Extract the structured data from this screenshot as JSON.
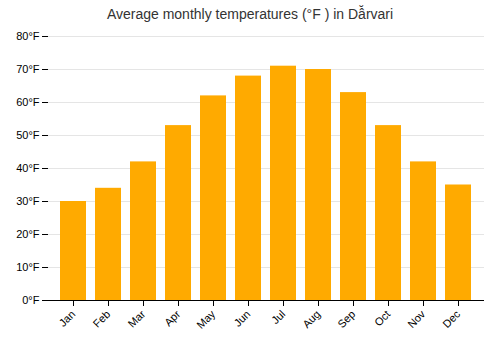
{
  "chart_data": {
    "type": "bar",
    "title": "Average monthly temperatures (°F ) in Dâ̆rvari",
    "categories": [
      "Jan",
      "Feb",
      "Mar",
      "Apr",
      "May",
      "Jun",
      "Jul",
      "Aug",
      "Sep",
      "Oct",
      "Nov",
      "Dec"
    ],
    "values": [
      30,
      34,
      42,
      53,
      62,
      68,
      71,
      70,
      63,
      53,
      42,
      35
    ],
    "color": "#FFAA00",
    "ylim": [
      0,
      80
    ],
    "yticks": [
      {
        "value": 0,
        "label": "0°F"
      },
      {
        "value": 10,
        "label": "10°F"
      },
      {
        "value": 20,
        "label": "20°F"
      },
      {
        "value": 30,
        "label": "30°F"
      },
      {
        "value": 40,
        "label": "40°F"
      },
      {
        "value": 50,
        "label": "50°F"
      },
      {
        "value": 60,
        "label": "60°F"
      },
      {
        "value": 70,
        "label": "70°F"
      },
      {
        "value": 80,
        "label": "80°F"
      }
    ],
    "grid": true
  }
}
